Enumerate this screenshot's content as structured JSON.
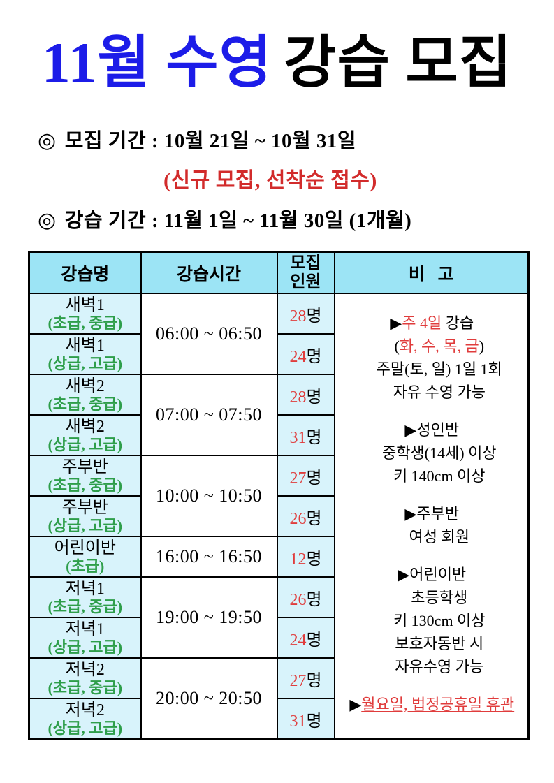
{
  "colors": {
    "title_blue": "#1c1ce8",
    "red": "#d22b2b",
    "num_red": "#e03c3c",
    "green": "#2e9e4a",
    "header_bg": "#9ce4f5",
    "cell_bg": "#d8f3fb",
    "border": "#000000"
  },
  "title": {
    "blue_text": "11월 수영",
    "black_text": "강습 모집"
  },
  "notice": {
    "bullet": "◎",
    "recruit_period": "모집 기간 : 10월 21일 ~ 10월 31일",
    "recruit_note": "(신규 모집, 선착순 접수)",
    "lesson_period": "강습 기간 : 11월 1일 ~ 11월 30일 (1개월)"
  },
  "table": {
    "headers": {
      "name": "강습명",
      "time": "강습시간",
      "capacity": "모집\n인원",
      "remarks": "비   고"
    },
    "capacity_suffix": "명",
    "groups": [
      {
        "time": "06:00 ~ 06:50",
        "rows": [
          {
            "name": "새벽1",
            "level": "(초급, 중급)",
            "count": "28"
          },
          {
            "name": "새벽1",
            "level": "(상급, 고급)",
            "count": "24"
          }
        ]
      },
      {
        "time": "07:00 ~ 07:50",
        "rows": [
          {
            "name": "새벽2",
            "level": "(초급, 중급)",
            "count": "28"
          },
          {
            "name": "새벽2",
            "level": "(상급, 고급)",
            "count": "31"
          }
        ]
      },
      {
        "time": "10:00 ~ 10:50",
        "rows": [
          {
            "name": "주부반",
            "level": "(초급, 중급)",
            "count": "27"
          },
          {
            "name": "주부반",
            "level": "(상급, 고급)",
            "count": "26"
          }
        ]
      },
      {
        "time": "16:00 ~ 16:50",
        "rows": [
          {
            "name": "어린이반",
            "level": "(초급)",
            "count": "12"
          }
        ]
      },
      {
        "time": "19:00 ~ 19:50",
        "rows": [
          {
            "name": "저녁1",
            "level": "(초급, 중급)",
            "count": "26"
          },
          {
            "name": "저녁1",
            "level": "(상급, 고급)",
            "count": "24"
          }
        ]
      },
      {
        "time": "20:00 ~ 20:50",
        "rows": [
          {
            "name": "저녁2",
            "level": "(초급, 중급)",
            "count": "27"
          },
          {
            "name": "저녁2",
            "level": "(상급, 고급)",
            "count": "31"
          }
        ]
      }
    ],
    "remarks_blocks": [
      {
        "lines": [
          {
            "segments": [
              {
                "text": "▶"
              },
              {
                "text": "주 4일",
                "red": true
              },
              {
                "text": " 강습"
              }
            ]
          },
          {
            "indent": true,
            "segments": [
              {
                "text": "("
              },
              {
                "text": "화, 수, 목, 금",
                "red": true
              },
              {
                "text": ")"
              }
            ]
          },
          {
            "indent": true,
            "segments": [
              {
                "text": "주말(토, 일) 1일 1회"
              }
            ]
          },
          {
            "indent": true,
            "segments": [
              {
                "text": "자유 수영 가능"
              }
            ]
          }
        ]
      },
      {
        "lines": [
          {
            "segments": [
              {
                "text": "▶성인반"
              }
            ]
          },
          {
            "indent": true,
            "segments": [
              {
                "text": "중학생(14세) 이상"
              }
            ]
          },
          {
            "indent": true,
            "segments": [
              {
                "text": "키 140cm 이상"
              }
            ]
          }
        ]
      },
      {
        "lines": [
          {
            "segments": [
              {
                "text": "▶주부반"
              }
            ]
          },
          {
            "indent": true,
            "segments": [
              {
                "text": "여성 회원"
              }
            ]
          }
        ]
      },
      {
        "lines": [
          {
            "segments": [
              {
                "text": "▶어린이반"
              }
            ]
          },
          {
            "indent": true,
            "segments": [
              {
                "text": "초등학생"
              }
            ]
          },
          {
            "indent": true,
            "segments": [
              {
                "text": "키 130cm 이상"
              }
            ]
          },
          {
            "indent": true,
            "segments": [
              {
                "text": "보호자동반 시"
              }
            ]
          },
          {
            "indent": true,
            "segments": [
              {
                "text": "자유수영 가능"
              }
            ]
          }
        ]
      },
      {
        "lines": [
          {
            "segments": [
              {
                "text": "▶"
              },
              {
                "text": "월요일, 법정공휴일 휴관",
                "red": true,
                "underline": true
              }
            ]
          }
        ]
      }
    ]
  }
}
